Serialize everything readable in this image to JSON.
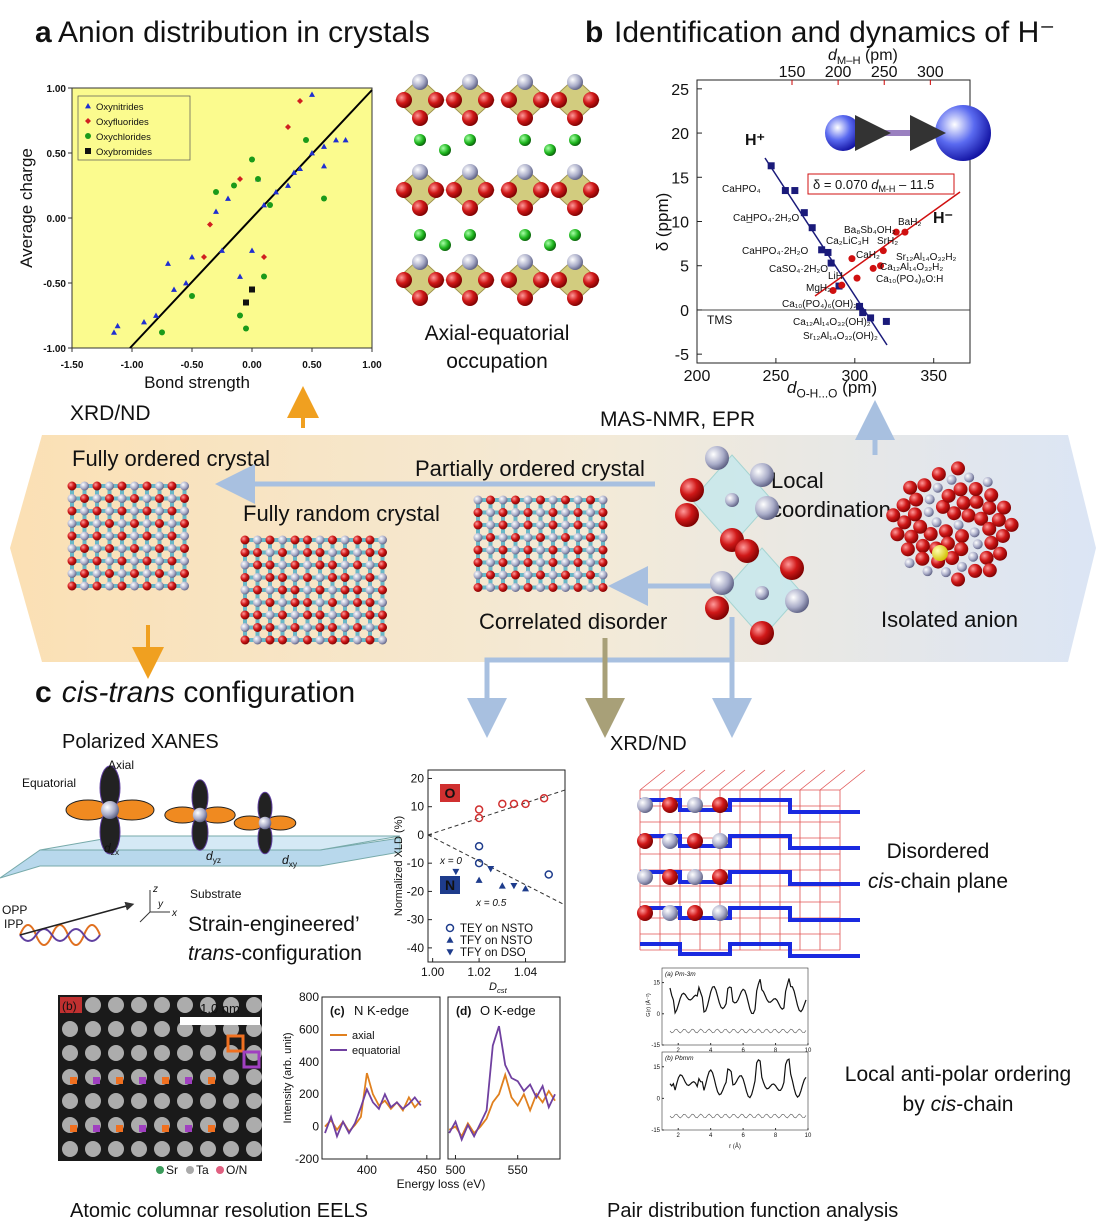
{
  "panel_a": {
    "label": "a",
    "title": "Anion distribution in crystals",
    "scatter": {
      "type": "scatter",
      "xlabel": "Bond strength",
      "ylabel": "Average charge",
      "xlim": [
        -1.5,
        1.0
      ],
      "ylim": [
        -1,
        1
      ],
      "xticks": [
        {
          "value": -1.5,
          "label": "-1.50"
        },
        {
          "value": -1,
          "label": "-1.00"
        },
        {
          "value": -0.5,
          "label": "-0.50"
        },
        {
          "value": 0,
          "label": "0.00"
        },
        {
          "value": 0.5,
          "label": "0.50"
        },
        {
          "value": 1,
          "label": "1.00"
        }
      ],
      "yticks": [
        {
          "value": -1,
          "label": "-1.00"
        },
        {
          "value": -0.5,
          "label": "-0.50"
        },
        {
          "value": 0,
          "label": "0.00"
        },
        {
          "value": 0.5,
          "label": "0.50"
        },
        {
          "value": 1,
          "label": "1.00"
        }
      ],
      "background": "#fbfb8e",
      "series": [
        {
          "name": "Oxynitrides",
          "color": "#1f2fd0",
          "marker": "triangle",
          "x": [
            -1.15,
            -1.12,
            -0.9,
            -0.8,
            -0.65,
            -0.55,
            -0.7,
            -0.5,
            -0.3,
            -0.25,
            -0.2,
            0.05,
            0.1,
            0.2,
            0.3,
            0.35,
            0.4,
            0.5,
            0.6,
            0.7,
            0.78,
            0.0,
            -0.1,
            0.5,
            0.6
          ],
          "values": [
            -0.88,
            -0.83,
            -0.8,
            -0.75,
            -0.55,
            -0.5,
            -0.35,
            -0.3,
            0.05,
            -0.25,
            0.15,
            0.3,
            0.1,
            0.2,
            0.25,
            0.35,
            0.38,
            0.5,
            0.55,
            0.6,
            0.6,
            -0.25,
            -0.45,
            0.95,
            0.4
          ]
        },
        {
          "name": "Oxyfluorides",
          "color": "#d02020",
          "marker": "diamond",
          "x": [
            0.4,
            -0.4,
            -0.35,
            -0.1,
            0.1,
            0.3,
            -0.1
          ],
          "values": [
            0.9,
            -0.3,
            -0.05,
            -0.75,
            -0.3,
            0.7,
            0.3
          ]
        },
        {
          "name": "Oxychlorides",
          "color": "#1a9a1a",
          "marker": "circle",
          "x": [
            -0.75,
            -0.5,
            -0.3,
            -0.15,
            0.0,
            0.05,
            0.15,
            -0.1,
            -0.05,
            0.45,
            0.6,
            0.1
          ],
          "values": [
            -0.88,
            -0.6,
            0.2,
            0.25,
            0.45,
            0.3,
            0.1,
            -0.75,
            -0.85,
            0.6,
            0.15,
            -0.45
          ]
        },
        {
          "name": "Oxybromides",
          "color": "#111111",
          "marker": "square",
          "x": [
            -0.05,
            0.0
          ],
          "values": [
            -0.65,
            -0.55
          ]
        }
      ]
    },
    "caption": [
      "Axial-equatorial",
      "occupation"
    ],
    "technique": "XRD/ND"
  },
  "panel_b": {
    "label": "b",
    "title": "Identification and dynamics of H⁻",
    "chart": {
      "type": "scatter",
      "xlabel": {
        "symbol": "d",
        "subscript": "O-H...O",
        "unit": " (pm)"
      },
      "x2label": {
        "symbol": "d",
        "subscript": "M–H",
        "unit": " (pm)"
      },
      "ylabel": "δ (ppm)",
      "xlim": [
        200,
        373
      ],
      "xticks": [
        200,
        250,
        300,
        350
      ],
      "x2lim": [
        47,
        343
      ],
      "x2ticks": [
        150,
        200,
        250,
        300
      ],
      "ylim": [
        -6,
        26
      ],
      "yticks": [
        -5,
        0,
        5,
        10,
        15,
        20,
        25
      ],
      "series": [
        {
          "color": "#1a1a7a",
          "marker": "square",
          "x": [
            247,
            256,
            262,
            268,
            273,
            279,
            283,
            285,
            290,
            303,
            305,
            310,
            320
          ],
          "values": [
            16.3,
            13.5,
            13.5,
            11,
            9.3,
            6.8,
            6.5,
            5.3,
            2.7,
            0.4,
            -0.3,
            -0.9,
            -1.3
          ]
        },
        {
          "color": "#d01010",
          "marker": "circle",
          "axis": "x2",
          "x": [
            272.5,
            263,
            249,
            246,
            238,
            220.5,
            204,
            194.5,
            215
          ],
          "values": [
            8.8,
            8.8,
            6.7,
            5,
            4.7,
            3.6,
            2.8,
            2.2,
            5.8
          ]
        }
      ]
    },
    "equation": {
      "left": "δ = 0.070 ",
      "symbol": "d",
      "subscript": "M-H",
      "right": " – 11.5"
    },
    "ion_labels": [
      "H⁺",
      "H⁻"
    ],
    "reference": "TMS",
    "compounds_h_plus": [
      "CaHPO₄",
      "CaH̲PO₄·2H₂O",
      "CaHPO₄·2H₂O",
      "CaSO₄·2H₂O",
      "Ca₁₀(PO₄)₆(OH)₂",
      "Ca₁₂Al₁₄O₃₂(OH)₂",
      "Sr₁₂Al₁₄O₃₂(OH)₂"
    ],
    "compounds_h_minus": [
      "Ba₈Sb₄OH₂",
      "Ca₂LiC₃H",
      "BaH₂",
      "SrH₂",
      "CaH₂",
      "Sr₁₂Al₁₄O₃₂H₂",
      "Ca₁₂Al₁₄O₃₂H₂",
      "Ca₁₀(PO₄)₆O:H",
      "LiH",
      "MgH₂"
    ],
    "technique": "MAS-NMR, EPR"
  },
  "band": {
    "fully_ordered": "Fully ordered crystal",
    "partially_ordered": "Partially ordered crystal",
    "fully_random": "Fully random crystal",
    "local_coordination": [
      "Local",
      "coordination"
    ],
    "correlated_disorder": "Correlated disorder",
    "isolated_anion": "Isolated anion"
  },
  "panel_c": {
    "label": "c",
    "title_italic": "cis-trans",
    "title_rest": " configuration",
    "xanes": {
      "title": "Polarized XANES",
      "axial": "Axial",
      "equatorial": "Equatorial",
      "orbitals": [
        {
          "symbol": "d",
          "subscript": "zx"
        },
        {
          "symbol": "d",
          "subscript": "yz"
        },
        {
          "symbol": "d",
          "subscript": "xy"
        }
      ],
      "substrate": "Substrate",
      "opp": "OPP",
      "ipp": "IPP",
      "axes": [
        "z",
        "y",
        "x"
      ]
    },
    "strain": {
      "line1": "Strain-engineered’",
      "italic": "trans",
      "rest": "-configuration"
    },
    "xld": {
      "type": "scatter",
      "ylabel": "Normalized XLD (%)",
      "xlabel": {
        "symbol": "D",
        "subscript": "cst"
      },
      "xlim": [
        0.998,
        1.057
      ],
      "ylim": [
        -45,
        23
      ],
      "xticks": [
        {
          "value": 1,
          "label": "1.00"
        },
        {
          "value": 1.02,
          "label": "1.02"
        },
        {
          "value": 1.04,
          "label": "1.04"
        }
      ],
      "yticks": [
        -40,
        -30,
        -20,
        -10,
        0,
        10,
        20
      ],
      "o_points": {
        "color": "#d03030",
        "x": [
          1.02,
          1.02,
          1.03,
          1.035,
          1.04,
          1.048
        ],
        "values": [
          9,
          6,
          11,
          11,
          11,
          13
        ]
      },
      "series": [
        {
          "name": "TEY on NSTO",
          "color": "#1e3c8c",
          "marker": "circle-open",
          "x": [
            1.02,
            1.02,
            1.05
          ],
          "values": [
            -4,
            -10,
            -14
          ]
        },
        {
          "name": "TFY on NSTO",
          "color": "#1e3c8c",
          "marker": "triangle",
          "x": [
            1.02,
            1.03,
            1.04
          ],
          "values": [
            -16,
            -18,
            -19
          ]
        },
        {
          "name": "TFY on DSO",
          "color": "#1e3c8c",
          "marker": "triangle-down",
          "x": [
            1.01,
            1.025,
            1.035
          ],
          "values": [
            -13,
            -12,
            -18
          ]
        }
      ],
      "labels": {
        "o": "O",
        "n": "N",
        "x0": "x = 0",
        "x05": "x = 0.5"
      }
    },
    "eels_image": {
      "panel": "(b)",
      "scale": "1.0 nm",
      "legend": [
        "Sr",
        "Ta",
        "O/N"
      ]
    },
    "spectra": {
      "type": "line",
      "ylabel": "Intensity (arb. unit)",
      "xlabel": "Energy loss (eV)",
      "ylim": [
        -200,
        800
      ],
      "yticks": [
        -200,
        0,
        200,
        400,
        600,
        800
      ],
      "panels": [
        {
          "label": "(c)",
          "edge": "N K-edge",
          "edge_color": "#2a2a8a",
          "xlim": [
            362.5,
            461
          ],
          "xticks": [
            400,
            450
          ],
          "x": [
            365,
            370,
            375,
            380,
            385,
            390,
            395,
            400,
            405,
            410,
            415,
            420,
            425,
            430,
            435,
            440,
            445
          ],
          "series": [
            {
              "name": "axial",
              "color": "#e0801e",
              "values": [
                0,
                40,
                -20,
                30,
                -30,
                10,
                60,
                330,
                200,
                130,
                160,
                110,
                150,
                100,
                180,
                120,
                160
              ]
            },
            {
              "name": "equatorial",
              "color": "#7040a0",
              "values": [
                -40,
                60,
                -60,
                30,
                -40,
                20,
                120,
                230,
                150,
                110,
                200,
                120,
                150,
                110,
                140,
                180,
                130
              ]
            }
          ]
        },
        {
          "label": "(d)",
          "edge": "O K-edge",
          "edge_color": "#c02020",
          "xlim": [
            494,
            584
          ],
          "xticks": [
            500,
            550
          ],
          "x": [
            495,
            500,
            505,
            510,
            515,
            520,
            525,
            530,
            535,
            540,
            545,
            550,
            555,
            560,
            565,
            570,
            575,
            580
          ],
          "series": [
            {
              "color": "#e0801e",
              "values": [
                -20,
                0,
                -60,
                20,
                -40,
                0,
                50,
                150,
                200,
                320,
                180,
                130,
                200,
                100,
                200,
                150,
                220,
                160
              ]
            },
            {
              "color": "#7040a0",
              "values": [
                -40,
                30,
                -80,
                10,
                -60,
                20,
                100,
                500,
                620,
                380,
                300,
                280,
                220,
                260,
                180,
                250,
                120,
                200
              ]
            }
          ]
        }
      ]
    },
    "eels_caption": "Atomic columnar resolution EELS",
    "xrd": {
      "technique": "XRD/ND",
      "line1": "Disordered",
      "italic": "cis",
      "rest": "-chain plane"
    },
    "pdf": {
      "plots": [
        "(a) Pm-3m",
        "(b) Pbmm"
      ],
      "xticks": [
        2,
        4,
        6,
        8,
        10
      ],
      "yticks": [
        -15,
        0,
        15
      ],
      "ylabel": "G(r) (Å⁻²)",
      "xlabel": "r (Å)",
      "caption": "Pair distribution function analysis"
    },
    "ordering": {
      "line1": "Local anti-polar ordering",
      "prefix": "by ",
      "italic": "cis",
      "rest": "-chain"
    }
  }
}
